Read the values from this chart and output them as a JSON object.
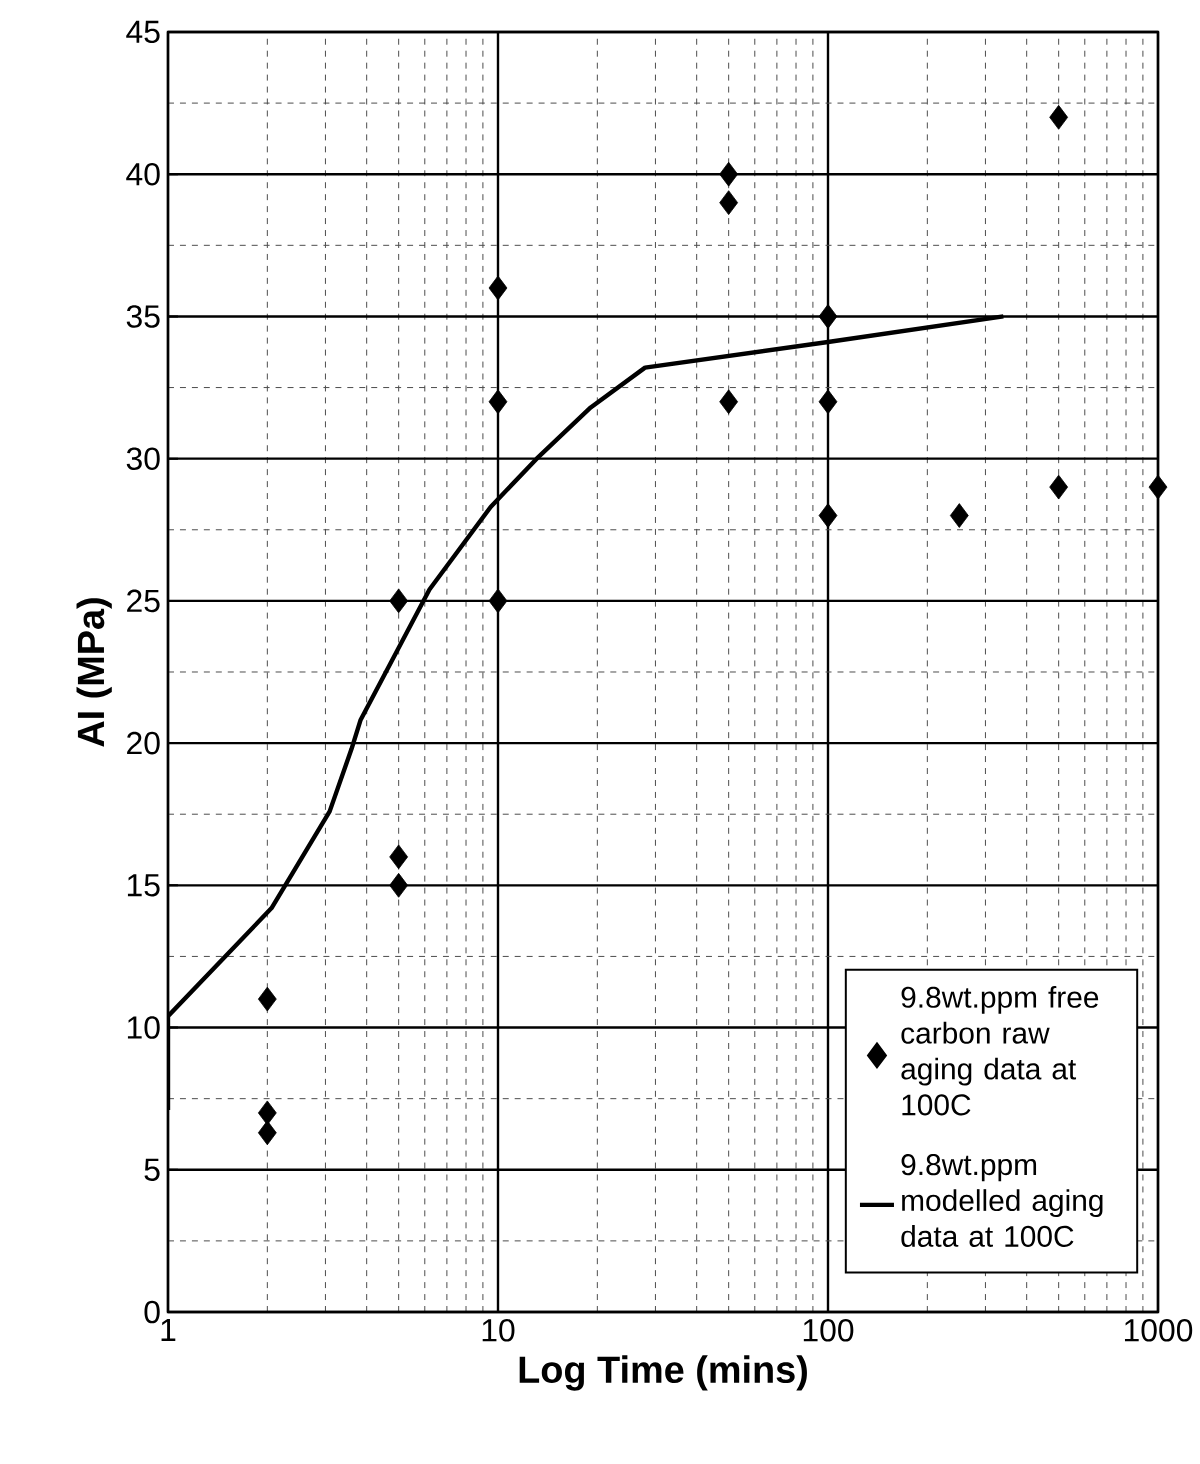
{
  "chart_data": {
    "type": "scatter",
    "xlabel": "Log Time (mins)",
    "ylabel": "AI (MPa)",
    "log": "x",
    "grid": true,
    "legend": "bottom right",
    "xlim": [
      1,
      1000
    ],
    "xticks": [
      1,
      10,
      100,
      1000
    ],
    "ylim": [
      0,
      45
    ],
    "yticks": [
      0,
      5,
      10,
      15,
      20,
      25,
      30,
      35,
      40,
      45
    ],
    "series": [
      {
        "name": "9.8wt.ppm free carbon raw aging data at 100C",
        "type": "scatter",
        "marker": "diamond",
        "color": "#000000",
        "x": [
          2,
          2,
          2,
          5,
          5,
          5,
          10,
          10,
          10,
          50,
          50,
          50,
          100,
          100,
          100,
          250,
          500,
          500,
          1000
        ],
        "values": [
          11,
          7,
          6.3,
          25,
          16,
          15,
          36,
          32,
          25,
          40,
          39,
          32,
          35,
          32,
          28,
          28,
          42,
          29,
          29
        ]
      },
      {
        "name": "9.8wt.ppm modelled aging data at 100C",
        "type": "line",
        "marker": "none",
        "color": "#000000",
        "x": [
          1,
          1,
          2.06,
          3.09,
          3.6,
          3.83,
          6.2,
          9.5,
          13.1,
          19.1,
          27.9,
          100,
          340
        ],
        "values": [
          7.1,
          10.4,
          14.2,
          17.6,
          19.8,
          20.8,
          25.4,
          28.3,
          30,
          31.8,
          33.2,
          34.1,
          35
        ]
      }
    ]
  }
}
